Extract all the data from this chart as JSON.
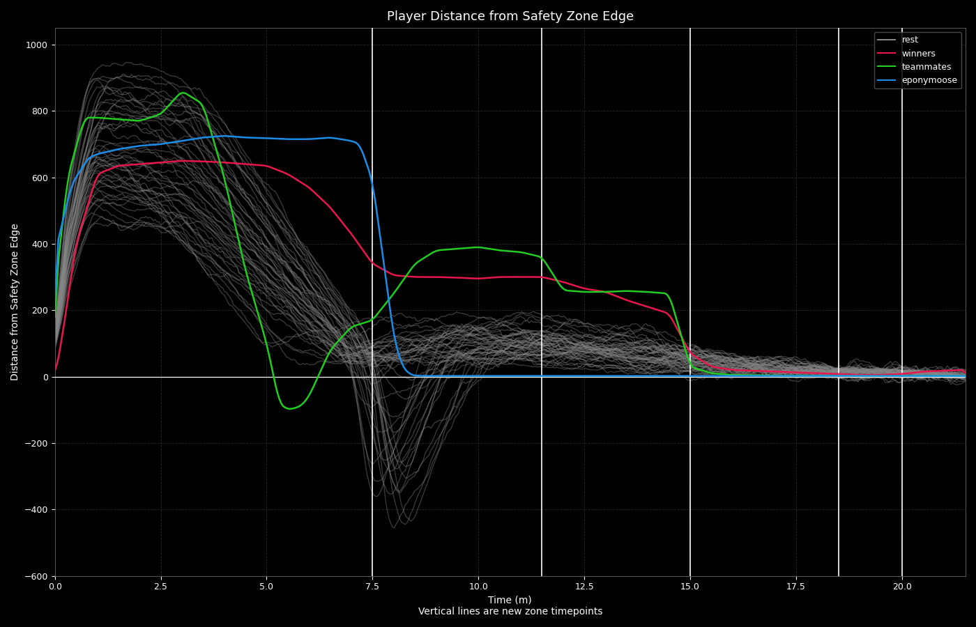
{
  "title": "Player Distance from Safety Zone Edge",
  "xlabel": "Time (m)",
  "xlabel2": "Vertical lines are new zone timepoints",
  "ylabel": "Distance from Safety Zone Edge",
  "background_color": "#000000",
  "text_color": "#ffffff",
  "ylim": [
    -600,
    1050
  ],
  "xlim": [
    0.0,
    21.5
  ],
  "vlines": [
    7.5,
    11.5,
    15.0,
    18.5,
    20.0
  ],
  "legend_labels": [
    "rest",
    "winners",
    "teammates",
    "eponymoose"
  ],
  "winner_color": "#e8174b",
  "teammate_color": "#22cc22",
  "eponymoose_color": "#1b8de8",
  "rest_color": "#888888",
  "rest_alpha": 0.45,
  "title_fontsize": 13,
  "axis_label_fontsize": 10
}
